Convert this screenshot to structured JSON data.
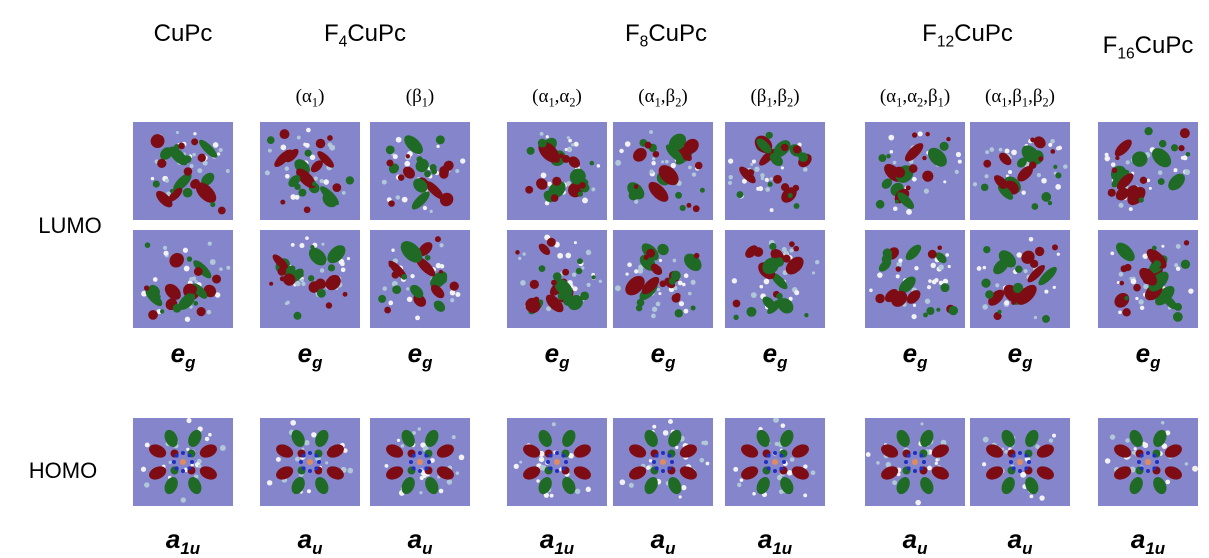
{
  "rows": {
    "lumo": "LUMO",
    "homo": "HOMO"
  },
  "groups": [
    {
      "title": [
        {
          "t": "CuPc"
        }
      ],
      "columns": [
        {
          "lumo": [
            {
              "t": "e"
            },
            {
              "sub": "g"
            }
          ],
          "homo": [
            {
              "t": "a"
            },
            {
              "sub": "1u"
            }
          ]
        }
      ]
    },
    {
      "title": [
        {
          "t": "F"
        },
        {
          "sub": "4"
        },
        {
          "t": "CuPc"
        }
      ],
      "columns": [
        {
          "sites": [
            {
              "t": "(α"
            },
            {
              "sub": "1"
            },
            {
              "t": ")"
            }
          ],
          "lumo": [
            {
              "t": "e"
            },
            {
              "sub": "g"
            }
          ],
          "homo": [
            {
              "t": "a"
            },
            {
              "sub": "u"
            }
          ]
        },
        {
          "sites": [
            {
              "t": "(β"
            },
            {
              "sub": "1"
            },
            {
              "t": ")"
            }
          ],
          "lumo": [
            {
              "t": "e"
            },
            {
              "sub": "g"
            }
          ],
          "homo": [
            {
              "t": "a"
            },
            {
              "sub": "u"
            }
          ]
        }
      ]
    },
    {
      "title": [
        {
          "t": "F"
        },
        {
          "sub": "8"
        },
        {
          "t": "CuPc"
        }
      ],
      "columns": [
        {
          "sites": [
            {
              "t": "(α"
            },
            {
              "sub": "1"
            },
            {
              "t": ",α"
            },
            {
              "sub": "2"
            },
            {
              "t": ")"
            }
          ],
          "lumo": [
            {
              "t": "e"
            },
            {
              "sub": "g"
            }
          ],
          "homo": [
            {
              "t": "a"
            },
            {
              "sub": "1u"
            }
          ]
        },
        {
          "sites": [
            {
              "t": "(α"
            },
            {
              "sub": "1"
            },
            {
              "t": ",β"
            },
            {
              "sub": "2"
            },
            {
              "t": ")"
            }
          ],
          "lumo": [
            {
              "t": "e"
            },
            {
              "sub": "g"
            }
          ],
          "homo": [
            {
              "t": "a"
            },
            {
              "sub": "u"
            }
          ]
        },
        {
          "sites": [
            {
              "t": "(β"
            },
            {
              "sub": "1"
            },
            {
              "t": ",β"
            },
            {
              "sub": "2"
            },
            {
              "t": ")"
            }
          ],
          "lumo": [
            {
              "t": "e"
            },
            {
              "sub": "g"
            }
          ],
          "homo": [
            {
              "t": "a"
            },
            {
              "sub": "1u"
            }
          ]
        }
      ]
    },
    {
      "title": [
        {
          "t": "F"
        },
        {
          "sub": "12"
        },
        {
          "t": "CuPc"
        }
      ],
      "columns": [
        {
          "sites": [
            {
              "t": "(α"
            },
            {
              "sub": "1"
            },
            {
              "t": ",α"
            },
            {
              "sub": "2"
            },
            {
              "t": ",β"
            },
            {
              "sub": "1"
            },
            {
              "t": ")"
            }
          ],
          "lumo": [
            {
              "t": "e"
            },
            {
              "sub": "g"
            }
          ],
          "homo": [
            {
              "t": "a"
            },
            {
              "sub": "u"
            }
          ]
        },
        {
          "sites": [
            {
              "t": "(α"
            },
            {
              "sub": "1"
            },
            {
              "t": ",β"
            },
            {
              "sub": "1"
            },
            {
              "t": ",β"
            },
            {
              "sub": "2"
            },
            {
              "t": ")"
            }
          ],
          "lumo": [
            {
              "t": "e"
            },
            {
              "sub": "g"
            }
          ],
          "homo": [
            {
              "t": "a"
            },
            {
              "sub": "u"
            }
          ]
        }
      ]
    },
    {
      "title": [
        {
          "t": "F"
        },
        {
          "sub": "16"
        },
        {
          "t": "CuPc"
        }
      ],
      "columns": [
        {
          "lumo": [
            {
              "t": "e"
            },
            {
              "sub": "g"
            }
          ],
          "homo": [
            {
              "t": "a"
            },
            {
              "sub": "1u"
            }
          ]
        }
      ]
    }
  ]
}
